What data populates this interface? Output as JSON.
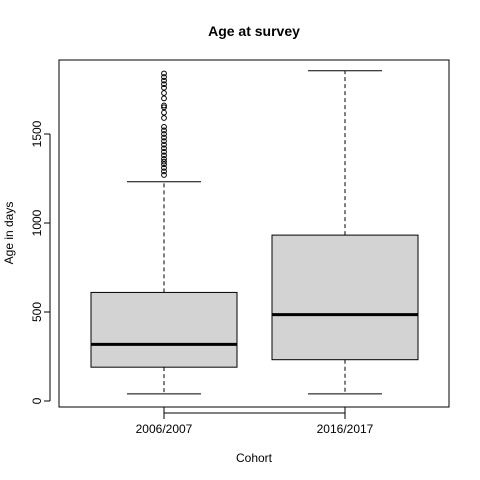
{
  "chart_data": {
    "type": "box",
    "title": "Age at survey",
    "xlabel": "Cohort",
    "ylabel": "Age in days",
    "ylim": [
      -20,
      1900
    ],
    "yticks": [
      0,
      500,
      1000,
      1500
    ],
    "categories": [
      "2006/2007",
      "2016/2017"
    ],
    "boxes": [
      {
        "category": "2006/2007",
        "whisker_low": 40,
        "q1": 190,
        "median": 318,
        "q3": 610,
        "whisker_high": 1232,
        "outliers": [
          1270,
          1290,
          1310,
          1330,
          1345,
          1360,
          1380,
          1400,
          1420,
          1440,
          1460,
          1480,
          1500,
          1520,
          1540,
          1590,
          1620,
          1650,
          1660,
          1700,
          1730,
          1760,
          1780,
          1800,
          1820,
          1840
        ]
      },
      {
        "category": "2016/2017",
        "whisker_low": 40,
        "q1": 232,
        "median": 485,
        "q3": 932,
        "whisker_high": 1855,
        "outliers": []
      }
    ],
    "box_fill": "#d3d3d3",
    "grid": false
  }
}
